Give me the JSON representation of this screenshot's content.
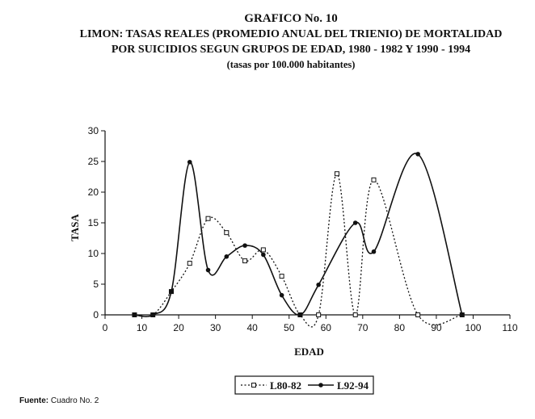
{
  "header": {
    "line1": "GRAFICO No. 10",
    "line2": "LIMON: TASAS REALES (PROMEDIO ANUAL DEL TRIENIO) DE MORTALIDAD",
    "line3": "POR SUICIDIOS SEGUN GRUPOS DE EDAD, 1980 - 1982 Y 1990 - 1994",
    "line4": "(tasas por 100.000 habitantes)"
  },
  "footer": {
    "source_label": "Fuente:",
    "source_text": "Cuadro No. 2"
  },
  "chart_data": {
    "type": "line",
    "xlabel": "EDAD",
    "ylabel": "TASA",
    "xlim": [
      0,
      110
    ],
    "ylim": [
      0,
      30
    ],
    "x_ticks": [
      0,
      10,
      20,
      30,
      40,
      50,
      60,
      70,
      80,
      90,
      100,
      110
    ],
    "y_ticks": [
      0,
      5,
      10,
      15,
      20,
      25,
      30
    ],
    "grid": false,
    "legend_position": "bottom",
    "series": [
      {
        "name": "L80-82",
        "style": "dotted",
        "marker": "square",
        "x": [
          8,
          13,
          18,
          23,
          28,
          33,
          38,
          43,
          48,
          53,
          58,
          63,
          68,
          73,
          85,
          97
        ],
        "y": [
          0,
          0,
          3.8,
          8.4,
          15.7,
          13.4,
          8.8,
          10.6,
          6.3,
          0,
          0,
          23,
          0,
          22,
          0,
          0
        ]
      },
      {
        "name": "L92-94",
        "style": "solid",
        "marker": "circle",
        "x": [
          8,
          13,
          18,
          23,
          28,
          33,
          38,
          43,
          48,
          53,
          58,
          68,
          73,
          85,
          97
        ],
        "y": [
          0,
          0,
          3.8,
          24.9,
          7.3,
          9.5,
          11.3,
          9.8,
          3.2,
          0,
          4.9,
          15,
          10.3,
          26.2,
          0
        ]
      }
    ]
  }
}
